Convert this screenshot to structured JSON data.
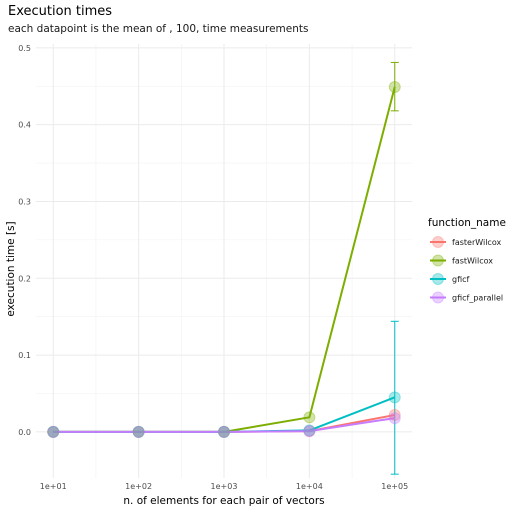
{
  "chart_data": {
    "type": "line",
    "title": "Execution times",
    "subtitle": "each datapoint is the mean of , 100,  time measurements",
    "xlabel": "n. of elements for each pair of vectors",
    "ylabel": "execution time [s]",
    "x": [
      10,
      100,
      1000,
      10000,
      100000
    ],
    "x_tick_labels": [
      "1e+01",
      "1e+02",
      "1e+03",
      "1e+04",
      "1e+05"
    ],
    "x_scale": "log10",
    "y_ticks": [
      0.0,
      0.1,
      0.2,
      0.3,
      0.4,
      0.5
    ],
    "y_tick_labels": [
      "0.0",
      "0.1",
      "0.2",
      "0.3",
      "0.4",
      "0.5"
    ],
    "ylim": [
      -0.06,
      0.505
    ],
    "grid": true,
    "legend": {
      "title": "function_name",
      "placement": "right"
    },
    "series": [
      {
        "name": "fasterWilcox",
        "color": "#F8766D",
        "values": [
          0.0,
          0.0,
          0.0,
          0.001,
          0.022
        ],
        "error_low": [
          null,
          null,
          null,
          null,
          null
        ],
        "error_high": [
          null,
          null,
          null,
          null,
          null
        ]
      },
      {
        "name": "fastWilcox",
        "color": "#7CAE00",
        "values": [
          0.0,
          0.0,
          0.0,
          0.019,
          0.449
        ],
        "error_low": [
          null,
          null,
          null,
          null,
          0.418
        ],
        "error_high": [
          null,
          null,
          null,
          null,
          0.481
        ]
      },
      {
        "name": "gficf",
        "color": "#00BFC4",
        "values": [
          0.0,
          0.0,
          0.0,
          0.002,
          0.045
        ],
        "error_low": [
          null,
          null,
          null,
          null,
          -0.055
        ],
        "error_high": [
          null,
          null,
          null,
          null,
          0.144
        ]
      },
      {
        "name": "gficf_parallel",
        "color": "#C77CFF",
        "values": [
          0.0,
          0.0,
          0.0,
          0.001,
          0.018
        ],
        "error_low": [
          null,
          null,
          null,
          null,
          null
        ],
        "error_high": [
          null,
          null,
          null,
          null,
          null
        ]
      }
    ]
  }
}
